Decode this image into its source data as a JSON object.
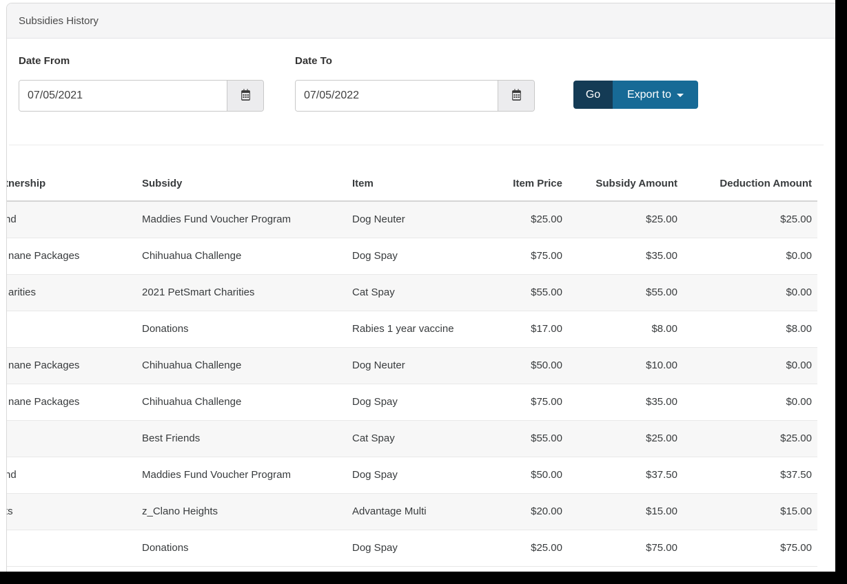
{
  "panel": {
    "title": "Subsidies History"
  },
  "filters": {
    "date_from": {
      "label": "Date From",
      "value": "07/05/2021"
    },
    "date_to": {
      "label": "Date To",
      "value": "07/05/2022"
    },
    "go_label": "Go",
    "export_label": "Export to",
    "calendar_icon": "calendar-icon",
    "caret_icon": "caret-down-icon"
  },
  "table": {
    "columns": [
      {
        "label": "tnership",
        "clipped": true
      },
      {
        "label": "Subsidy",
        "clipped": false
      },
      {
        "label": "Item",
        "clipped": false
      },
      {
        "label": "Item Price",
        "clipped": false
      },
      {
        "label": "Subsidy Amount",
        "clipped": false
      },
      {
        "label": "Deduction Amount",
        "clipped": false
      }
    ],
    "rows": [
      {
        "partnership": {
          "text": "nd",
          "clipped": true
        },
        "subsidy": "Maddies Fund Voucher Program",
        "item": "Dog Neuter",
        "item_price": "$25.00",
        "subsidy_amount": "$25.00",
        "deduction_amount": "$25.00"
      },
      {
        "partnership": {
          "text": "nane Packages",
          "clipped": false
        },
        "subsidy": "Chihuahua Challenge",
        "item": "Dog Spay",
        "item_price": "$75.00",
        "subsidy_amount": "$35.00",
        "deduction_amount": "$0.00"
      },
      {
        "partnership": {
          "text": "arities",
          "clipped": false
        },
        "subsidy": "2021 PetSmart Charities",
        "item": "Cat Spay",
        "item_price": "$55.00",
        "subsidy_amount": "$55.00",
        "deduction_amount": "$0.00"
      },
      {
        "partnership": {
          "text": "",
          "clipped": false
        },
        "subsidy": "Donations",
        "item": "Rabies 1 year vaccine",
        "item_price": "$17.00",
        "subsidy_amount": "$8.00",
        "deduction_amount": "$8.00"
      },
      {
        "partnership": {
          "text": "nane Packages",
          "clipped": false
        },
        "subsidy": "Chihuahua Challenge",
        "item": "Dog Neuter",
        "item_price": "$50.00",
        "subsidy_amount": "$10.00",
        "deduction_amount": "$0.00"
      },
      {
        "partnership": {
          "text": "nane Packages",
          "clipped": false
        },
        "subsidy": "Chihuahua Challenge",
        "item": "Dog Spay",
        "item_price": "$75.00",
        "subsidy_amount": "$35.00",
        "deduction_amount": "$0.00"
      },
      {
        "partnership": {
          "text": "",
          "clipped": false
        },
        "subsidy": "Best Friends",
        "item": "Cat Spay",
        "item_price": "$55.00",
        "subsidy_amount": "$25.00",
        "deduction_amount": "$25.00"
      },
      {
        "partnership": {
          "text": "nd",
          "clipped": true
        },
        "subsidy": "Maddies Fund Voucher Program",
        "item": "Dog Spay",
        "item_price": "$50.00",
        "subsidy_amount": "$37.50",
        "deduction_amount": "$37.50"
      },
      {
        "partnership": {
          "text": "ts",
          "clipped": true
        },
        "subsidy": "z_Clano Heights",
        "item": "Advantage Multi",
        "item_price": "$20.00",
        "subsidy_amount": "$15.00",
        "deduction_amount": "$15.00"
      },
      {
        "partnership": {
          "text": "",
          "clipped": false
        },
        "subsidy": "Donations",
        "item": "Dog Spay",
        "item_price": "$25.00",
        "subsidy_amount": "$75.00",
        "deduction_amount": "$75.00"
      }
    ]
  },
  "colors": {
    "go_button_bg": "#143b55",
    "export_button_bg": "#176a96",
    "panel_header_bg": "#f5f5f6",
    "stripe_row_bg": "#f7f7f7",
    "outer_background": "#000000"
  }
}
